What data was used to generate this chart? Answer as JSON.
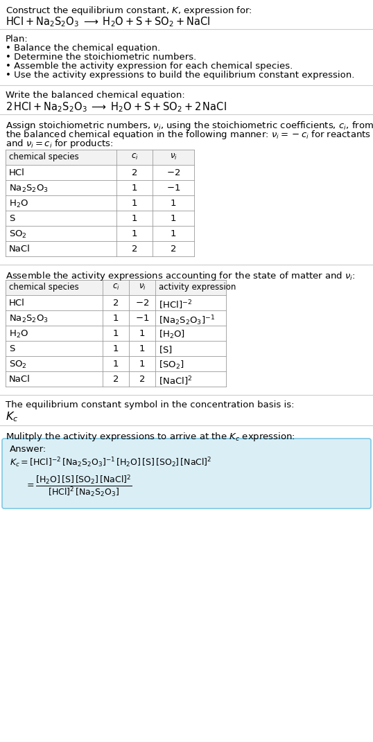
{
  "bg_color": "#ffffff",
  "text_color": "#000000",
  "title_line1": "Construct the equilibrium constant, $K$, expression for:",
  "title_line2_plain": "HCl + Na",
  "plan_header": "Plan:",
  "plan_items": [
    "• Balance the chemical equation.",
    "• Determine the stoichiometric numbers.",
    "• Assemble the activity expression for each chemical species.",
    "• Use the activity expressions to build the equilibrium constant expression."
  ],
  "balanced_header": "Write the balanced chemical equation:",
  "stoich_text": [
    "Assign stoichiometric numbers, $\\nu_i$, using the stoichiometric coefficients, $c_i$, from",
    "the balanced chemical equation in the following manner: $\\nu_i = -c_i$ for reactants",
    "and $\\nu_i = c_i$ for products:"
  ],
  "table1_headers": [
    "chemical species",
    "$c_i$",
    "$\\nu_i$"
  ],
  "table1_rows": [
    [
      "HCl",
      "2",
      "$-2$"
    ],
    [
      "$\\mathrm{Na_2S_2O_3}$",
      "1",
      "$-1$"
    ],
    [
      "$\\mathrm{H_2O}$",
      "1",
      "1"
    ],
    [
      "S",
      "1",
      "1"
    ],
    [
      "$\\mathrm{SO_2}$",
      "1",
      "1"
    ],
    [
      "NaCl",
      "2",
      "2"
    ]
  ],
  "activity_header": "Assemble the activity expressions accounting for the state of matter and $\\nu_i$:",
  "table2_headers": [
    "chemical species",
    "$c_i$",
    "$\\nu_i$",
    "activity expression"
  ],
  "table2_rows": [
    [
      "HCl",
      "2",
      "$-2$",
      "$[\\mathrm{HCl}]^{-2}$"
    ],
    [
      "$\\mathrm{Na_2S_2O_3}$",
      "1",
      "$-1$",
      "$[\\mathrm{Na_2S_2O_3}]^{-1}$"
    ],
    [
      "$\\mathrm{H_2O}$",
      "1",
      "1",
      "$[\\mathrm{H_2O}]$"
    ],
    [
      "S",
      "1",
      "1",
      "$[\\mathrm{S}]$"
    ],
    [
      "$\\mathrm{SO_2}$",
      "1",
      "1",
      "$[\\mathrm{SO_2}]$"
    ],
    [
      "NaCl",
      "2",
      "2",
      "$[\\mathrm{NaCl}]^2$"
    ]
  ],
  "kc_symbol_header": "The equilibrium constant symbol in the concentration basis is:",
  "kc_symbol": "$K_c$",
  "multiply_header": "Mulitply the activity expressions to arrive at the $K_c$ expression:",
  "answer_box_color": "#daeef5",
  "answer_box_border": "#7ec8e3",
  "table_border_color": "#999999",
  "table_header_bg": "#f2f2f2",
  "font_size": 9.5,
  "font_size_small": 8.5
}
